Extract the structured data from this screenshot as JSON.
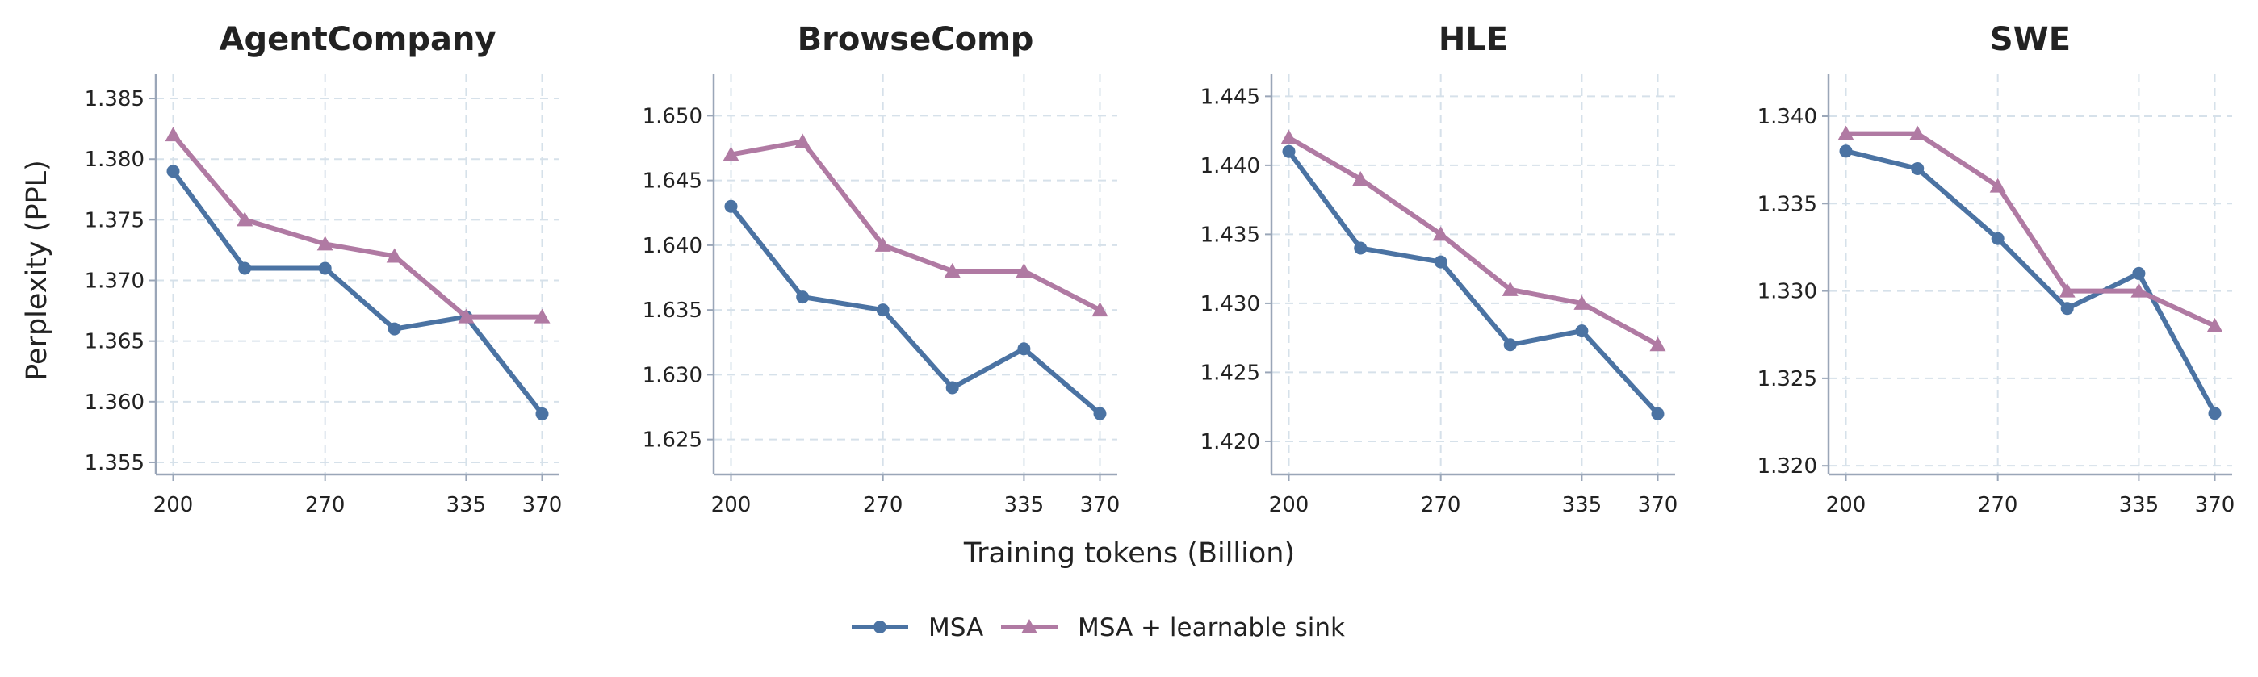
{
  "colors": {
    "msa": "#4b73a3",
    "sink": "#b07aa3",
    "axis": "#9aa6b8",
    "grid": "#d6e1ea"
  },
  "figure": {
    "ylabel": "Perplexity (PPL)",
    "xlabel": "Training tokens (Billion)"
  },
  "legend": {
    "items": [
      {
        "label": "MSA",
        "marker": "circle",
        "color": "#4b73a3"
      },
      {
        "label": "MSA + learnable sink",
        "marker": "triangle",
        "color": "#b07aa3"
      }
    ]
  },
  "chart_data": [
    {
      "type": "line",
      "title": "AgentCompany",
      "x": [
        200,
        233,
        270,
        302,
        335,
        370
      ],
      "xticks": [
        200,
        270,
        335,
        370
      ],
      "xticklabels": [
        "200",
        "270",
        "335",
        "370"
      ],
      "xlim": [
        192,
        378
      ],
      "ylim": [
        1.354,
        1.387
      ],
      "yticks": [
        1.355,
        1.36,
        1.365,
        1.37,
        1.375,
        1.38,
        1.385
      ],
      "yticklabels": [
        "1.355",
        "1.360",
        "1.365",
        "1.370",
        "1.375",
        "1.380",
        "1.385"
      ],
      "grid": true,
      "series": [
        {
          "name": "MSA",
          "values": [
            1.379,
            1.371,
            1.371,
            1.366,
            1.367,
            1.359
          ]
        },
        {
          "name": "MSA + learnable sink",
          "values": [
            1.382,
            1.375,
            1.373,
            1.372,
            1.367,
            1.367
          ]
        }
      ]
    },
    {
      "type": "line",
      "title": "BrowseComp",
      "x": [
        200,
        233,
        270,
        302,
        335,
        370
      ],
      "xticks": [
        200,
        270,
        335,
        370
      ],
      "xticklabels": [
        "200",
        "270",
        "335",
        "370"
      ],
      "xlim": [
        192,
        378
      ],
      "ylim": [
        1.6223,
        1.6532
      ],
      "yticks": [
        1.625,
        1.63,
        1.635,
        1.64,
        1.645,
        1.65
      ],
      "yticklabels": [
        "1.625",
        "1.630",
        "1.635",
        "1.640",
        "1.645",
        "1.650"
      ],
      "grid": true,
      "series": [
        {
          "name": "MSA",
          "values": [
            1.643,
            1.636,
            1.635,
            1.629,
            1.632,
            1.627
          ]
        },
        {
          "name": "MSA + learnable sink",
          "values": [
            1.647,
            1.648,
            1.64,
            1.638,
            1.638,
            1.635
          ]
        }
      ]
    },
    {
      "type": "line",
      "title": "HLE",
      "x": [
        200,
        233,
        270,
        302,
        335,
        370
      ],
      "xticks": [
        200,
        270,
        335,
        370
      ],
      "xticklabels": [
        "200",
        "270",
        "335",
        "370"
      ],
      "xlim": [
        192,
        378
      ],
      "ylim": [
        1.4176,
        1.4466
      ],
      "yticks": [
        1.42,
        1.425,
        1.43,
        1.435,
        1.44,
        1.445
      ],
      "yticklabels": [
        "1.420",
        "1.425",
        "1.430",
        "1.435",
        "1.440",
        "1.445"
      ],
      "grid": true,
      "series": [
        {
          "name": "MSA",
          "values": [
            1.441,
            1.434,
            1.433,
            1.427,
            1.428,
            1.422
          ]
        },
        {
          "name": "MSA + learnable sink",
          "values": [
            1.442,
            1.439,
            1.435,
            1.431,
            1.43,
            1.427
          ]
        }
      ]
    },
    {
      "type": "line",
      "title": "SWE",
      "x": [
        200,
        233,
        270,
        302,
        335,
        370
      ],
      "xticks": [
        200,
        270,
        335,
        370
      ],
      "xticklabels": [
        "200",
        "270",
        "335",
        "370"
      ],
      "xlim": [
        192,
        378
      ],
      "ylim": [
        1.3195,
        1.3424
      ],
      "yticks": [
        1.32,
        1.325,
        1.33,
        1.335,
        1.34
      ],
      "yticklabels": [
        "1.320",
        "1.325",
        "1.330",
        "1.335",
        "1.340"
      ],
      "grid": true,
      "series": [
        {
          "name": "MSA",
          "values": [
            1.338,
            1.337,
            1.333,
            1.329,
            1.331,
            1.323
          ]
        },
        {
          "name": "MSA + learnable sink",
          "values": [
            1.339,
            1.339,
            1.336,
            1.33,
            1.33,
            1.328
          ]
        }
      ]
    }
  ]
}
